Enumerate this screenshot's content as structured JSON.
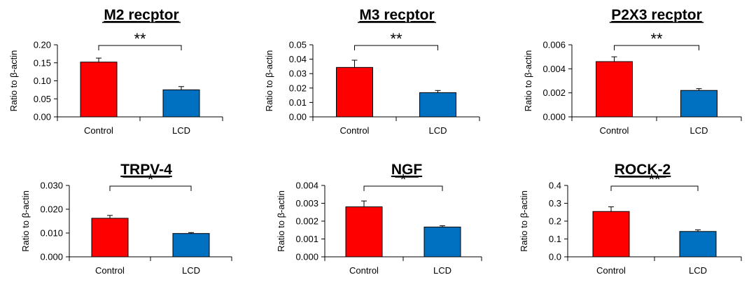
{
  "chart_data": [
    {
      "type": "bar",
      "title": "M2 recptor",
      "ylabel": "Ratio to β-actin",
      "categories": [
        "Control",
        "LCD"
      ],
      "values": [
        0.152,
        0.075
      ],
      "errors": [
        0.011,
        0.009
      ],
      "ylim": [
        0,
        0.2
      ],
      "yticks": [
        "0.00",
        "0.05",
        "0.10",
        "0.15",
        "0.20"
      ],
      "significance": "**",
      "colors": [
        "#ff0000",
        "#0070c0"
      ]
    },
    {
      "type": "bar",
      "title": "M3 recptor",
      "ylabel": "Ratio to β-actin",
      "categories": [
        "Control",
        "LCD"
      ],
      "values": [
        0.0343,
        0.0168
      ],
      "errors": [
        0.005,
        0.0015
      ],
      "ylim": [
        0,
        0.05
      ],
      "yticks": [
        "0.00",
        "0.01",
        "0.02",
        "0.03",
        "0.04",
        "0.05"
      ],
      "significance": "**",
      "colors": [
        "#ff0000",
        "#0070c0"
      ]
    },
    {
      "type": "bar",
      "title": "P2X3 recptor",
      "ylabel": "Ratio to β-actin",
      "categories": [
        "Control",
        "LCD"
      ],
      "values": [
        0.0046,
        0.0022
      ],
      "errors": [
        0.0004,
        0.00015
      ],
      "ylim": [
        0,
        0.006
      ],
      "yticks": [
        "0.000",
        "0.002",
        "0.004",
        "0.006"
      ],
      "significance": "**",
      "colors": [
        "#ff0000",
        "#0070c0"
      ]
    },
    {
      "type": "bar",
      "title": "TRPV-4",
      "ylabel": "Ratio to β-actin",
      "categories": [
        "Control",
        "LCD"
      ],
      "values": [
        0.0162,
        0.0098
      ],
      "errors": [
        0.0012,
        0.0004
      ],
      "ylim": [
        0,
        0.03
      ],
      "yticks": [
        "0.000",
        "0.010",
        "0.020",
        "0.030"
      ],
      "significance": "*",
      "colors": [
        "#ff0000",
        "#0070c0"
      ]
    },
    {
      "type": "bar",
      "title": "NGF",
      "ylabel": "Ratio to β-actin",
      "categories": [
        "Control",
        "LCD"
      ],
      "values": [
        0.0028,
        0.00167
      ],
      "errors": [
        0.00033,
        7e-05
      ],
      "ylim": [
        0,
        0.004
      ],
      "yticks": [
        "0.000",
        "0.001",
        "0.002",
        "0.003",
        "0.004"
      ],
      "significance": "*",
      "colors": [
        "#ff0000",
        "#0070c0"
      ]
    },
    {
      "type": "bar",
      "title": "ROCK-2",
      "ylabel": "Ratio to β-actin",
      "categories": [
        "Control",
        "LCD"
      ],
      "values": [
        0.254,
        0.142
      ],
      "errors": [
        0.026,
        0.009
      ],
      "ylim": [
        0,
        0.4
      ],
      "yticks": [
        "0.0",
        "0.1",
        "0.2",
        "0.3",
        "0.4"
      ],
      "significance": "**",
      "colors": [
        "#ff0000",
        "#0070c0"
      ]
    }
  ]
}
